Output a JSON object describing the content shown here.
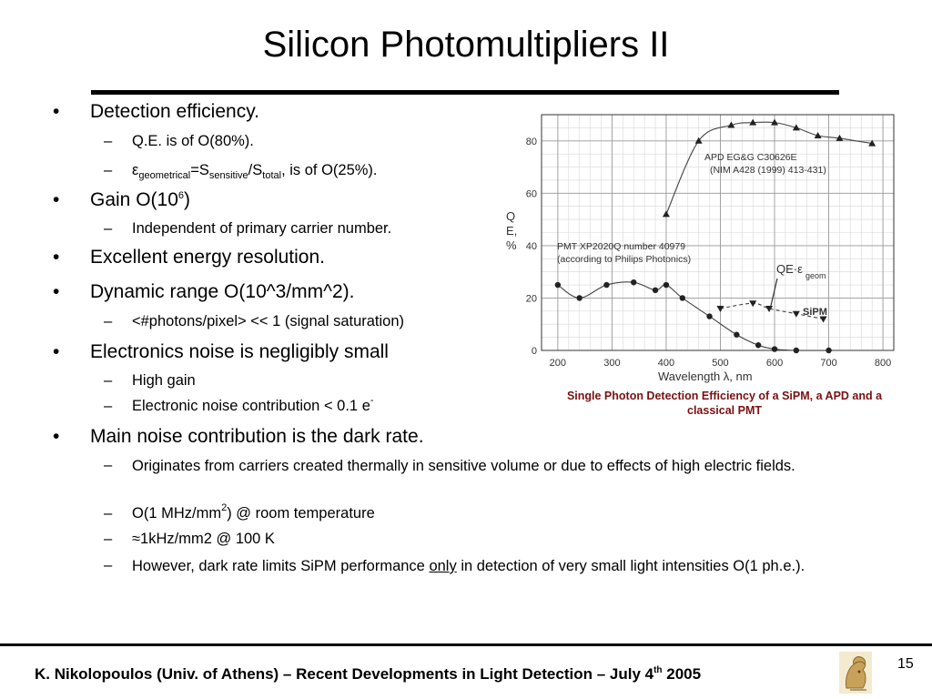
{
  "title": "Silicon Photomultipliers II",
  "bullets": {
    "b1": "Detection efficiency.",
    "b1_s1": "Q.E. is of  O(80%).",
    "b1_s2": {
      "eps": "ε",
      "sub1": "geometrical",
      "eq": "=S",
      "sub2": "sensitive",
      "slash": "/S",
      "sub3": "total",
      "tail": ", is of O(25%)."
    },
    "b2": {
      "text": "Gain  O(10",
      "sup": "6",
      "close": ")"
    },
    "b2_s1": "Independent of primary carrier number.",
    "b3": "Excellent energy resolution.",
    "b4": "Dynamic range O(10^3/mm^2).",
    "b4_s1": "<#photons/pixel> << 1 (signal saturation)",
    "b5": "Electronics noise is negligibly small",
    "b5_s1": "High gain",
    "b5_s2": {
      "text": "Electronic noise contribution < 0.1 e",
      "sup": "-"
    },
    "b6": "Main noise contribution is the dark rate.",
    "b6_s1": "Originates from carriers created thermally in sensitive volume or due to effects of high electric fields.",
    "b6_s2": {
      "text": "O(1 MHz/mm",
      "sup": "2",
      "tail": ") @ room temperature"
    },
    "b6_s3": " ≈1kHz/mm2 @ 100 K",
    "b6_s4": {
      "pre": "However, dark rate limits SiPM performance ",
      "u": "only",
      "post": " in detection of very small light intensities O(1 ph.e.)."
    },
    "mark1": "•",
    "mark2": "–"
  },
  "figure": {
    "ylabel_lines": [
      "Q",
      "E,",
      "%"
    ],
    "xlabel": "Wavelength λ, nm",
    "apd_label": [
      "APD EG&G C30626E",
      "(NIM A428 (1999) 413-431)"
    ],
    "pmt_label": [
      "PMT XP2020Q number 40979",
      "(according to Philips Photonics)"
    ],
    "qe_label": "QE·ε",
    "qe_sub": "geom",
    "sipm_label": "SiPM"
  },
  "chart_data": {
    "type": "line",
    "xlabel": "Wavelength λ, nm",
    "ylabel": "Q E, %",
    "xlim": [
      170,
      820
    ],
    "ylim": [
      0,
      90
    ],
    "xticks": [
      200,
      300,
      400,
      500,
      600,
      700,
      800
    ],
    "yticks": [
      0,
      20,
      40,
      60,
      80
    ],
    "grid": true,
    "series": [
      {
        "name": "APD EG&G C30626E",
        "marker": "triangle-up",
        "x": [
          400,
          460,
          520,
          560,
          600,
          640,
          680,
          720,
          780
        ],
        "y": [
          52,
          80,
          86,
          87,
          87,
          85,
          82,
          81,
          79
        ]
      },
      {
        "name": "PMT XP2020Q number 40979",
        "marker": "circle",
        "x": [
          200,
          240,
          290,
          340,
          380,
          400,
          430,
          480,
          530,
          570,
          600,
          640,
          700
        ],
        "y": [
          25,
          20,
          25,
          26,
          23,
          25,
          20,
          13,
          6,
          2,
          0.5,
          0,
          0
        ]
      },
      {
        "name": "SiPM",
        "marker": "triangle-down",
        "x": [
          500,
          560,
          590,
          640,
          690
        ],
        "y": [
          16,
          18,
          16,
          14,
          12
        ]
      }
    ]
  },
  "caption": "Single Photon Detection Efficiency of a SiPM, a APD and a classical PMT",
  "footer": {
    "text": "K. Nikolopoulos (Univ. of Athens) – Recent Developments in Light Detection – July 4",
    "sup": "th",
    "year": "  2005"
  },
  "page_number": "15",
  "colors": {
    "caption": "#7a1010"
  }
}
